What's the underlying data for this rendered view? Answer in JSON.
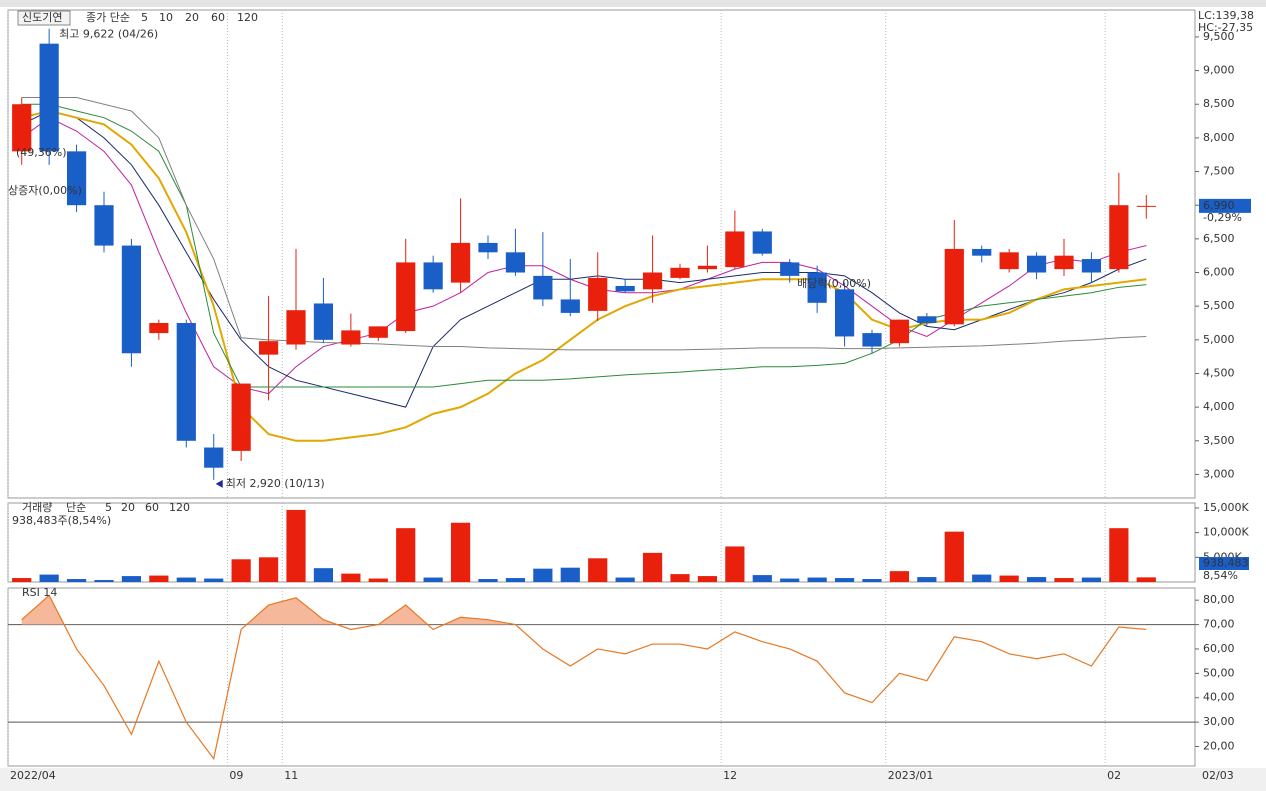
{
  "chart_data": [
    {
      "type": "candlestick",
      "title": "신도기연",
      "legend_label": "종가 단순",
      "categories": [
        "2022/04",
        null,
        null,
        null,
        null,
        null,
        null,
        null,
        "09",
        null,
        "11",
        null,
        null,
        null,
        null,
        null,
        null,
        null,
        null,
        null,
        null,
        null,
        null,
        null,
        null,
        null,
        "12",
        null,
        null,
        null,
        null,
        null,
        "2023/01",
        null,
        null,
        null,
        null,
        null,
        null,
        null,
        "02",
        null
      ],
      "open": [
        7800,
        9400,
        7800,
        7000,
        6400,
        5100,
        5250,
        3400,
        3350,
        4780,
        4930,
        5540,
        4930,
        5030,
        5130,
        6150,
        5850,
        6440,
        6300,
        5950,
        5600,
        5430,
        5800,
        5750,
        5920,
        6050,
        6080,
        6610,
        6150,
        6000,
        5750,
        5100,
        4950,
        5350,
        5230,
        6350,
        6050,
        6250,
        6050,
        6200,
        6050,
        6990
      ],
      "high": [
        8600,
        9622,
        7900,
        7200,
        6500,
        5300,
        5300,
        3600,
        4350,
        5650,
        6350,
        5920,
        5390,
        5200,
        6500,
        6250,
        7100,
        6550,
        6650,
        6600,
        6200,
        6300,
        5900,
        6550,
        6130,
        6400,
        6920,
        6650,
        6200,
        6100,
        5850,
        5150,
        5300,
        5400,
        6780,
        6400,
        6350,
        6300,
        6500,
        6300,
        7480,
        7150
      ],
      "low": [
        7600,
        7600,
        6900,
        6300,
        4600,
        5000,
        3400,
        2920,
        3200,
        4100,
        4850,
        4950,
        4900,
        4980,
        5100,
        5700,
        5700,
        6200,
        5950,
        5500,
        5350,
        5280,
        5700,
        5550,
        5900,
        6000,
        6050,
        6250,
        5850,
        5400,
        4900,
        4800,
        4900,
        5200,
        5200,
        6150,
        6000,
        5900,
        5950,
        5850,
        6000,
        6800
      ],
      "close": [
        8500,
        7800,
        7000,
        6400,
        4800,
        5250,
        3500,
        3100,
        4350,
        4980,
        5440,
        5000,
        5140,
        5200,
        6150,
        5750,
        6440,
        6300,
        6000,
        5600,
        5400,
        5920,
        5720,
        6000,
        6070,
        6100,
        6610,
        6280,
        5950,
        5550,
        5050,
        4900,
        5300,
        5250,
        6350,
        6250,
        6300,
        6000,
        6250,
        6000,
        7000,
        6990
      ],
      "up_color": "#e8200c",
      "down_color": "#1a5fc8",
      "series": [
        {
          "name": "5",
          "color": "#c020a0",
          "values": [
            8000,
            8300,
            8100,
            7800,
            7300,
            6300,
            5400,
            4600,
            4300,
            4200,
            4600,
            4900,
            5000,
            5100,
            5400,
            5500,
            5700,
            6000,
            6100,
            6100,
            5900,
            5750,
            5700,
            5700,
            5750,
            5900,
            6050,
            6150,
            6150,
            6050,
            5800,
            5500,
            5200,
            5050,
            5300,
            5550,
            5800,
            6100,
            6200,
            6150,
            6300,
            6400
          ]
        },
        {
          "name": "10",
          "color": "#1a2a6c",
          "values": [
            8200,
            8400,
            8300,
            8000,
            7600,
            7000,
            6300,
            5600,
            5000,
            4600,
            4400,
            4300,
            4200,
            4100,
            4000,
            4900,
            5300,
            5500,
            5700,
            5900,
            5900,
            5950,
            5900,
            5900,
            5850,
            5900,
            5950,
            6000,
            6000,
            6000,
            5950,
            5700,
            5400,
            5200,
            5150,
            5300,
            5450,
            5600,
            5700,
            5850,
            6050,
            6200
          ]
        },
        {
          "name": "20",
          "color": "#e0a800",
          "values": [
            8300,
            8400,
            8300,
            8200,
            7900,
            7400,
            6600,
            5500,
            4000,
            3600,
            3500,
            3500,
            3550,
            3600,
            3700,
            3900,
            4000,
            4200,
            4500,
            4700,
            5000,
            5300,
            5500,
            5650,
            5750,
            5800,
            5850,
            5900,
            5900,
            5900,
            5700,
            5300,
            5150,
            5250,
            5300,
            5300,
            5400,
            5600,
            5750,
            5800,
            5850,
            5900
          ]
        },
        {
          "name": "60",
          "color": "#2a8a3a",
          "values": [
            8500,
            8500,
            8400,
            8300,
            8100,
            7800,
            7000,
            5100,
            4300,
            4300,
            4300,
            4300,
            4300,
            4300,
            4300,
            4300,
            4350,
            4400,
            4400,
            4400,
            4420,
            4450,
            4480,
            4500,
            4520,
            4550,
            4570,
            4600,
            4600,
            4620,
            4650,
            4800,
            5000,
            5300,
            5400,
            5500,
            5550,
            5600,
            5650,
            5700,
            5780,
            5820
          ]
        },
        {
          "name": "120",
          "color": "#808080",
          "values": [
            8600,
            8600,
            8600,
            8500,
            8400,
            8000,
            7000,
            6200,
            5030,
            5000,
            4980,
            4960,
            4950,
            4940,
            4920,
            4900,
            4900,
            4880,
            4870,
            4860,
            4850,
            4850,
            4850,
            4850,
            4850,
            4860,
            4870,
            4880,
            4880,
            4880,
            4870,
            4870,
            4880,
            4890,
            4900,
            4910,
            4930,
            4950,
            4980,
            5000,
            5030,
            5050
          ]
        }
      ],
      "ylim": [
        2650,
        9900
      ],
      "yticks": [
        {
          "value": 3000,
          "label": "3,000"
        },
        {
          "value": 3500,
          "label": "3,500"
        },
        {
          "value": 4000,
          "label": "4,000"
        },
        {
          "value": 4500,
          "label": "4,500"
        },
        {
          "value": 5000,
          "label": "5,000"
        },
        {
          "value": 5500,
          "label": "5,500"
        },
        {
          "value": 6000,
          "label": "6,000"
        },
        {
          "value": 6500,
          "label": "6,500"
        },
        {
          "value": 7000,
          "label": "7,000"
        },
        {
          "value": 7500,
          "label": "7,500"
        },
        {
          "value": 8000,
          "label": "8,000"
        },
        {
          "value": 8500,
          "label": "8,500"
        },
        {
          "value": 9000,
          "label": "9,000"
        },
        {
          "value": 9500,
          "label": "9,500"
        }
      ],
      "high_label": "최고 9,622 (04/26)",
      "low_label": "최저 2,920 (10/13)",
      "lc_label": "LC:139,38",
      "hc_label": "HC:-27,35",
      "last_label": "6,990",
      "last_change": "-0,29%",
      "event_labels": [
        "(49,36%)",
        "상증자(0,00%)",
        "배당락(0,00%)"
      ],
      "x_end_label": "02/03"
    },
    {
      "type": "bar",
      "title": "거래량",
      "legend_label": "단순",
      "ma_names": [
        "5",
        "20",
        "60",
        "120"
      ],
      "ma_colors": [
        "#c020a0",
        "#e0a800",
        "#2a8a3a",
        "#808080"
      ],
      "values": [
        800,
        1500,
        600,
        400,
        1200,
        1300,
        900,
        700,
        4600,
        5000,
        14600,
        2800,
        1700,
        700,
        10900,
        900,
        12000,
        600,
        800,
        2700,
        2900,
        4800,
        900,
        5900,
        1600,
        1200,
        7200,
        1400,
        700,
        900,
        800,
        600,
        2200,
        1000,
        10200,
        1500,
        1300,
        1000,
        800,
        900,
        10900,
        938.483
      ],
      "ylim": [
        0,
        16000
      ],
      "yticks": [
        {
          "value": 5000,
          "label": "5,000K"
        },
        {
          "value": 10000,
          "label": "10,000K"
        },
        {
          "value": 15000,
          "label": "15,000K"
        }
      ],
      "subtitle": "938,483주(8,54%)",
      "last_label": "938,483",
      "last_change": "8,54%"
    },
    {
      "type": "line",
      "title": "RSI 14",
      "color": "#e87722",
      "fill_color": "#f5b89a",
      "values": [
        72,
        82,
        60,
        45,
        25,
        55,
        30,
        15,
        68,
        78,
        81,
        72,
        68,
        70,
        78,
        68,
        73,
        72,
        70,
        60,
        53,
        60,
        58,
        62,
        62,
        60,
        67,
        63,
        60,
        55,
        42,
        38,
        50,
        47,
        65,
        63,
        58,
        56,
        58,
        53,
        69,
        68
      ],
      "levels": [
        70,
        30
      ],
      "ylim": [
        12,
        85
      ],
      "yticks": [
        {
          "value": 20,
          "label": "20,00"
        },
        {
          "value": 30,
          "label": "30,00"
        },
        {
          "value": 40,
          "label": "40,00"
        },
        {
          "value": 50,
          "label": "50,00"
        },
        {
          "value": 60,
          "label": "60,00"
        },
        {
          "value": 70,
          "label": "70,00"
        },
        {
          "value": 80,
          "label": "80,00"
        }
      ]
    }
  ]
}
